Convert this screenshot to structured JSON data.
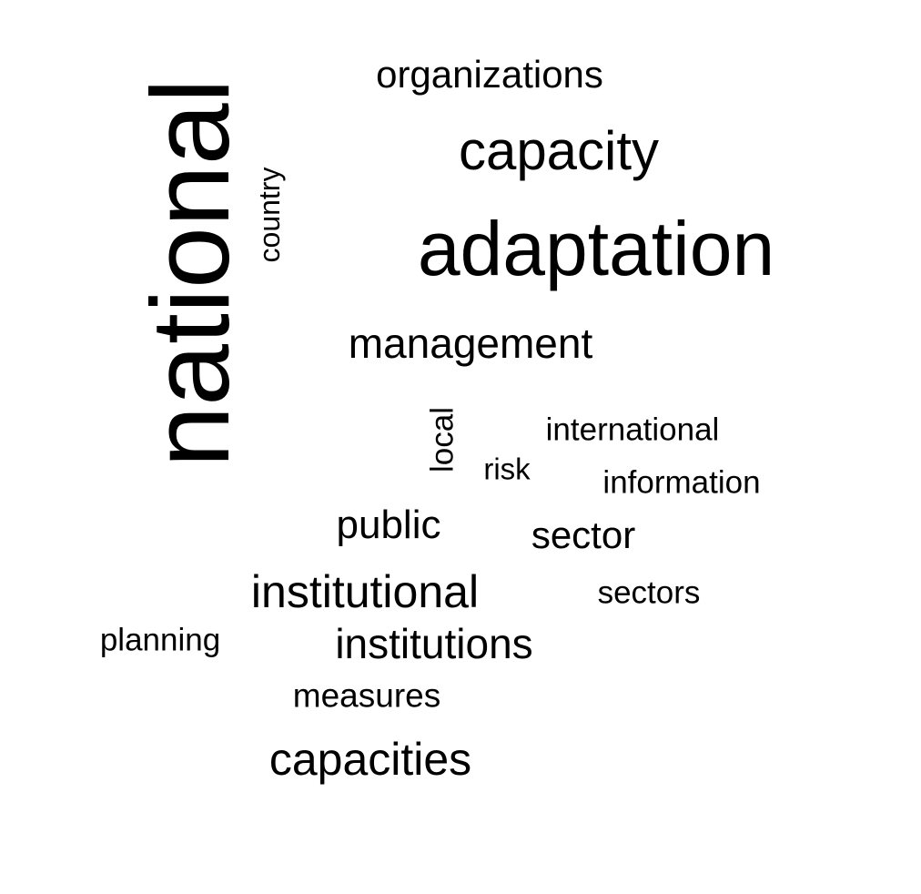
{
  "word_cloud": {
    "words": {
      "national": "national",
      "adaptation": "adaptation",
      "capacity": "capacity",
      "organizations": "organizations",
      "country": "country",
      "management": "management",
      "international": "international",
      "local": "local",
      "risk": "risk",
      "information": "information",
      "public": "public",
      "sector": "sector",
      "institutional": "institutional",
      "sectors": "sectors",
      "planning": "planning",
      "institutions": "institutions",
      "measures": "measures",
      "capacities": "capacities"
    },
    "colors": {
      "text": "#000000",
      "background": "#ffffff"
    }
  }
}
